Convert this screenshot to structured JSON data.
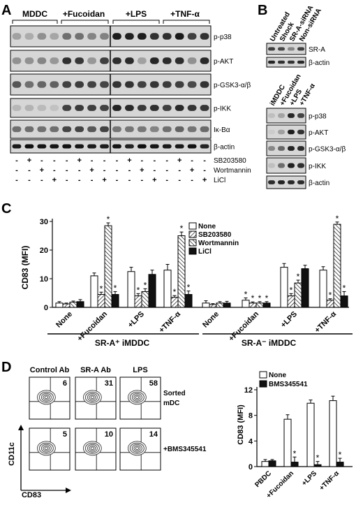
{
  "panel_labels": {
    "a": "A",
    "b": "B",
    "c": "C",
    "d": "D"
  },
  "panel_a": {
    "groups": [
      "MDDC",
      "+Fucoidan",
      "+LPS",
      "+TNF-α"
    ],
    "blots": [
      "p-p38",
      "p-AKT",
      "p-GSK3-α/β",
      "p-IKK",
      "Iκ-Bα",
      "β-actin"
    ],
    "treatments": [
      {
        "label": "SB203580",
        "signs": [
          "-",
          "+",
          "-",
          "-",
          "-",
          "+",
          "-",
          "-",
          "-",
          "+",
          "-",
          "-",
          "-",
          "+",
          "-",
          "-"
        ]
      },
      {
        "label": "Wortmannin",
        "signs": [
          "-",
          "-",
          "+",
          "-",
          "-",
          "-",
          "+",
          "-",
          "-",
          "-",
          "+",
          "-",
          "-",
          "-",
          "+",
          "-"
        ]
      },
      {
        "label": "LiCl",
        "signs": [
          "-",
          "-",
          "-",
          "+",
          "-",
          "-",
          "-",
          "+",
          "-",
          "-",
          "-",
          "+",
          "-",
          "-",
          "-",
          "+"
        ]
      }
    ]
  },
  "panel_b": {
    "top_columns": [
      "Untreated",
      "Shock",
      "SR-A-siRNA",
      "Non-siRNA"
    ],
    "top_blots": [
      "SR-A",
      "β-actin"
    ],
    "bottom_columns": [
      "iMDDC",
      "+Fucoidan",
      "+LPS",
      "+TNF-α"
    ],
    "bottom_blots": [
      "p-p38",
      "p-AKT",
      "p-GSK3-α/β",
      "p-IKK",
      "β-actin"
    ]
  },
  "panel_c": {
    "legend": [
      "None",
      "SB203580",
      "Wortmannin",
      "LiCl"
    ],
    "group_titles": [
      "SR-A⁺ iMDDC",
      "SR-A⁻ iMDDC"
    ]
  },
  "panel_d": {
    "flow_columns": [
      "Control Ab",
      "SR-A Ab",
      "LPS"
    ],
    "row_labels": [
      "Sorted\nmDC",
      "+BMS345541"
    ],
    "quadrant_values": [
      [
        "6",
        "31",
        "58"
      ],
      [
        "5",
        "10",
        "14"
      ]
    ],
    "x_axis_label": "CD83",
    "y_axis_label": "CD11c"
  },
  "chart_data": [
    {
      "type": "bar",
      "panel": "C",
      "ylabel": "CD83 (MFI)",
      "ylim": [
        0,
        30
      ],
      "yticks": [
        0,
        10,
        20,
        30
      ],
      "categories": [
        "None",
        "+Fucoidan",
        "+LPS",
        "+TNF-α",
        "None",
        "+Fucoidan",
        "+LPS",
        "+TNF-α"
      ],
      "category_groups": [
        "SR-A⁺ iMDDC",
        "SR-A⁺ iMDDC",
        "SR-A⁺ iMDDC",
        "SR-A⁺ iMDDC",
        "SR-A⁻ iMDDC",
        "SR-A⁻ iMDDC",
        "SR-A⁻ iMDDC",
        "SR-A⁻ iMDDC"
      ],
      "series": [
        {
          "name": "None",
          "values": [
            1.5,
            11,
            12.5,
            13,
            1.5,
            2.5,
            14,
            13
          ],
          "errors": [
            0.5,
            1.0,
            1.5,
            2.0,
            0.8,
            0.8,
            1.3,
            1.2
          ],
          "stars": [
            "",
            "",
            "",
            "",
            "",
            "*",
            "",
            ""
          ]
        },
        {
          "name": "SB203580",
          "values": [
            1.2,
            4.5,
            4,
            3.5,
            1.0,
            1.5,
            4,
            2.5
          ],
          "errors": [
            0.3,
            0.8,
            0.8,
            0.6,
            0.3,
            0.4,
            0.8,
            0.5
          ],
          "stars": [
            "",
            "*",
            "*",
            "*",
            "",
            "*",
            "*",
            "*"
          ]
        },
        {
          "name": "Wortmannin",
          "values": [
            1.8,
            28.5,
            5.5,
            25,
            1.5,
            1.5,
            8.5,
            29
          ],
          "errors": [
            0.4,
            1.0,
            1.0,
            1.3,
            0.5,
            0.5,
            1.0,
            0.8
          ],
          "stars": [
            "",
            "*",
            "*",
            "*",
            "",
            "*",
            "*",
            "*"
          ]
        },
        {
          "name": "LiCl",
          "values": [
            2,
            4.5,
            11.5,
            4.5,
            1.5,
            1.5,
            13.5,
            4
          ],
          "errors": [
            0.7,
            1.0,
            1.5,
            1.2,
            0.6,
            0.5,
            1.2,
            1.5
          ],
          "stars": [
            "",
            "*",
            "",
            "*",
            "",
            "*",
            "",
            "*"
          ]
        }
      ],
      "legend_position": "top-right"
    },
    {
      "type": "bar",
      "panel": "D",
      "ylabel": "CD83 (MFI)",
      "ylim": [
        0,
        12
      ],
      "yticks": [
        0,
        4,
        8,
        12
      ],
      "categories": [
        "PBDC",
        "+Fucoidan",
        "+LPS",
        "+TNF-α"
      ],
      "series": [
        {
          "name": "None",
          "values": [
            0.8,
            7.4,
            9.9,
            10.3
          ],
          "errors": [
            0.3,
            0.7,
            0.5,
            0.7
          ],
          "stars": [
            "",
            "",
            "",
            ""
          ]
        },
        {
          "name": "BMS345541",
          "values": [
            0.9,
            0.7,
            0.3,
            0.7
          ],
          "errors": [
            0.2,
            0.8,
            0.5,
            0.6
          ],
          "stars": [
            "",
            "*",
            "*",
            "*"
          ]
        }
      ],
      "legend_position": "top-left"
    }
  ],
  "colors": {
    "bar_open": "#ffffff",
    "bar_solid": "#111111",
    "blot_background": "#d9d9d9",
    "band": "#1a1a1a"
  }
}
